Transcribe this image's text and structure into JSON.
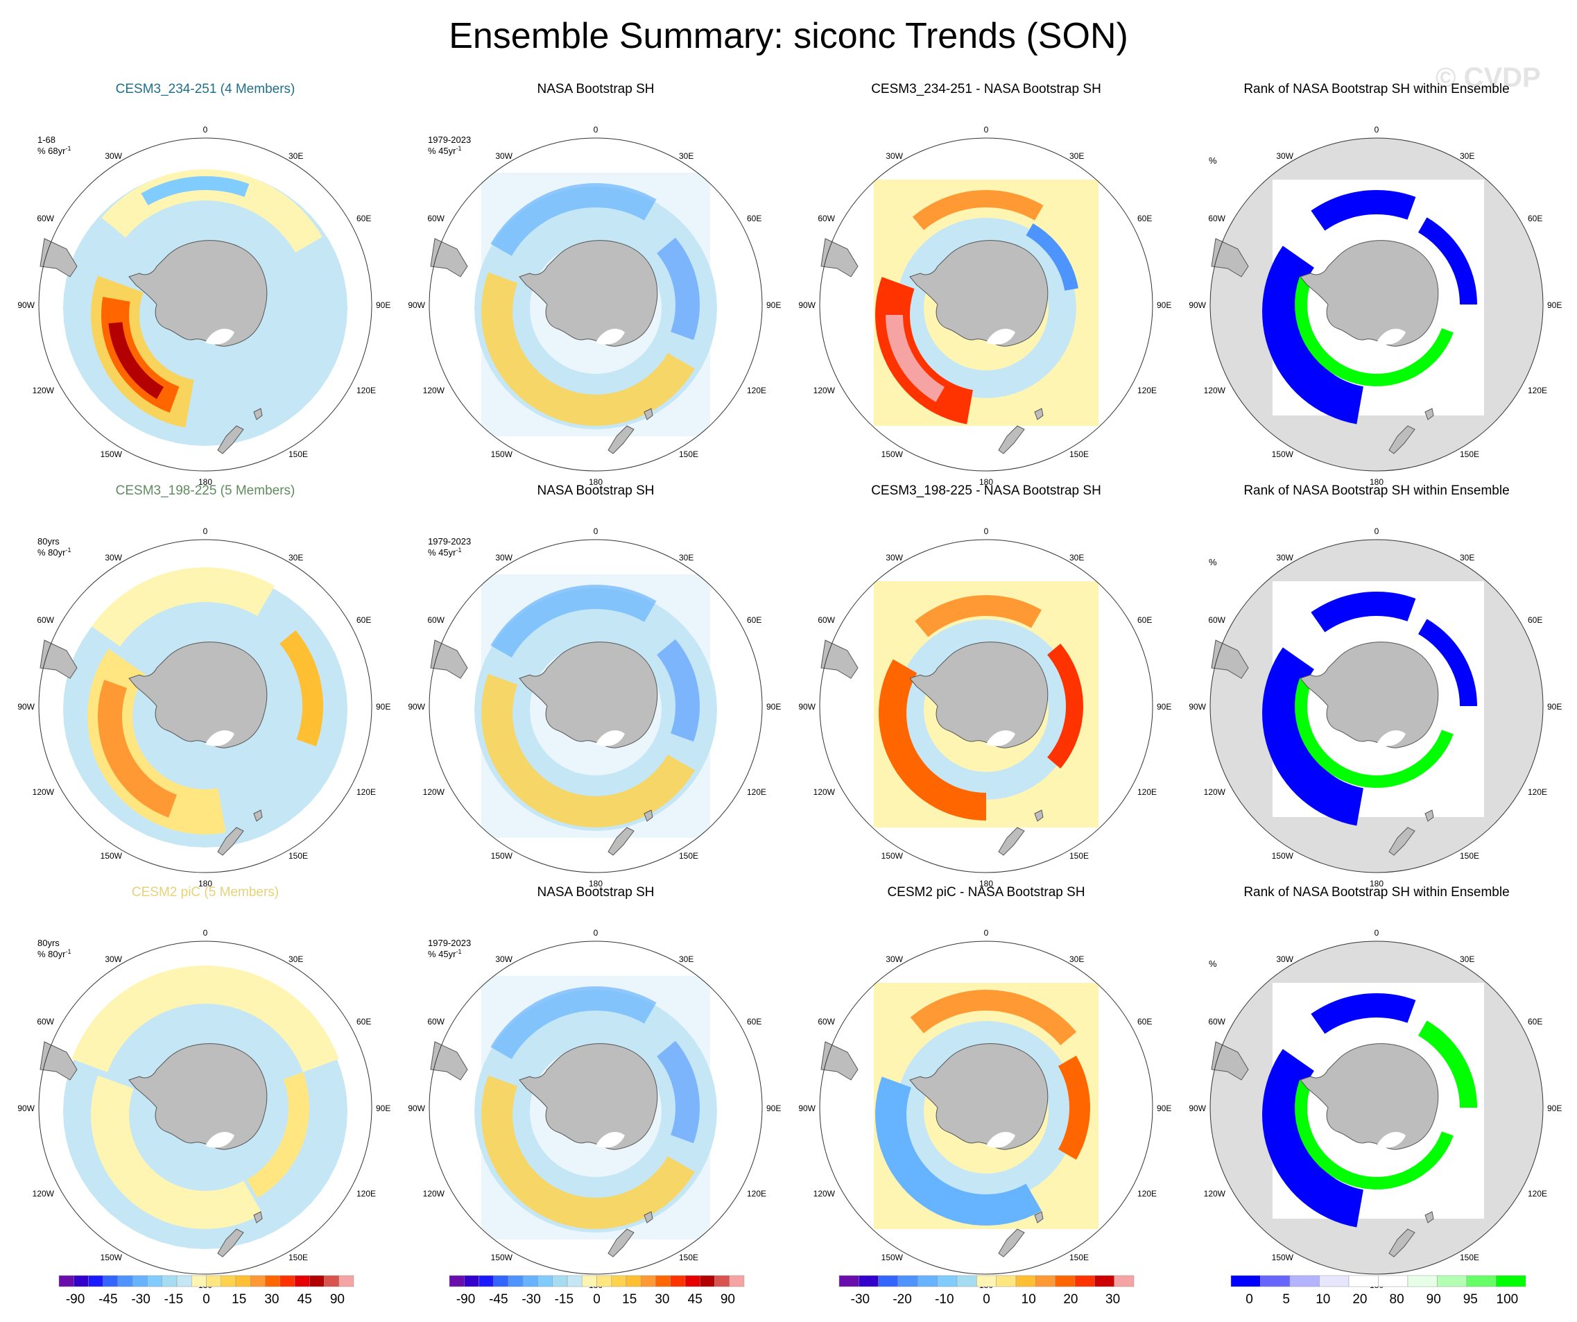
{
  "title": "Ensemble Summary: siconc Trends (SON)",
  "watermark": "© CVDP",
  "lon_labels": {
    "top": "0",
    "bottom": "180",
    "left": "90W",
    "right": "90E",
    "tl1": "30W",
    "tr1": "30E",
    "tl2": "60W",
    "tr2": "60E",
    "bl1": "120W",
    "br1": "120E",
    "bl2": "150W",
    "br2": "150E"
  },
  "colors": {
    "land": "#bdbdbd",
    "ocean_grey": "#dddddd",
    "model_title_1": "#1f6f8b",
    "model_title_2": "#5e8c5e",
    "model_title_3": "#e6d27a"
  },
  "rows": [
    {
      "model": {
        "title": "CESM3_234-251 (4 Members)",
        "period": "1-68",
        "units": "% 68yr",
        "units_sup": "-1"
      },
      "obs": {
        "title": "NASA Bootstrap SH",
        "period": "1979-2023",
        "units": "% 45yr",
        "units_sup": "-1"
      },
      "diff": {
        "title": "CESM3_234-251 - NASA Bootstrap SH"
      },
      "rank": {
        "title": "Rank of NASA Bootstrap SH within Ensemble",
        "units": "%"
      }
    },
    {
      "model": {
        "title": "CESM3_198-225 (5 Members)",
        "period": "80yrs",
        "units": "% 80yr",
        "units_sup": "-1"
      },
      "obs": {
        "title": "NASA Bootstrap SH",
        "period": "1979-2023",
        "units": "% 45yr",
        "units_sup": "-1"
      },
      "diff": {
        "title": "CESM3_198-225 - NASA Bootstrap SH"
      },
      "rank": {
        "title": "Rank of NASA Bootstrap SH within Ensemble",
        "units": "%"
      }
    },
    {
      "model": {
        "title": "CESM2 piC (5 Members)",
        "period": "80yrs",
        "units": "% 80yr",
        "units_sup": "-1"
      },
      "obs": {
        "title": "NASA Bootstrap SH",
        "period": "1979-2023",
        "units": "% 45yr",
        "units_sup": "-1"
      },
      "diff": {
        "title": "CESM2 piC - NASA Bootstrap SH"
      },
      "rank": {
        "title": "Rank of NASA Bootstrap SH within Ensemble",
        "units": "%"
      }
    }
  ],
  "colorbars": [
    {
      "name": "trend",
      "colors": [
        "#6a0dad",
        "#3300cc",
        "#1a1aff",
        "#3366ff",
        "#4d94ff",
        "#66b3ff",
        "#80ccff",
        "#a6dcf2",
        "#c4e6f5",
        "#fff5b3",
        "#ffe680",
        "#ffd24d",
        "#ffbf33",
        "#ff9933",
        "#ff6600",
        "#ff3300",
        "#e60000",
        "#b30000",
        "#d9534f",
        "#f5a3a3"
      ],
      "labels": [
        "-90",
        "-45",
        "-30",
        "-15",
        "0",
        "15",
        "30",
        "45",
        "90"
      ]
    },
    {
      "name": "trend",
      "colors": [
        "#6a0dad",
        "#3300cc",
        "#1a1aff",
        "#3366ff",
        "#4d94ff",
        "#66b3ff",
        "#80ccff",
        "#a6dcf2",
        "#c4e6f5",
        "#fff5b3",
        "#ffe680",
        "#ffd24d",
        "#ffbf33",
        "#ff9933",
        "#ff6600",
        "#ff3300",
        "#e60000",
        "#b30000",
        "#d9534f",
        "#f5a3a3"
      ],
      "labels": [
        "-90",
        "-45",
        "-30",
        "-15",
        "0",
        "15",
        "30",
        "45",
        "90"
      ]
    },
    {
      "name": "diff",
      "colors": [
        "#6a0dad",
        "#3300cc",
        "#3366ff",
        "#4d94ff",
        "#66b3ff",
        "#80ccff",
        "#a6dcf2",
        "#fff5b3",
        "#ffe680",
        "#ffbf33",
        "#ff9933",
        "#ff6600",
        "#ff3300",
        "#cc0000",
        "#f5a3a3"
      ],
      "labels": [
        "-30",
        "-20",
        "-10",
        "0",
        "10",
        "20",
        "30"
      ]
    },
    {
      "name": "rank",
      "colors": [
        "#0000ff",
        "#6666ff",
        "#b3b3ff",
        "#e6e6ff",
        "#ffffff",
        "#ffffff",
        "#e6ffe6",
        "#b3ffb3",
        "#66ff66",
        "#00ff00"
      ],
      "labels": [
        "0",
        "5",
        "10",
        "20",
        "80",
        "90",
        "95",
        "100"
      ]
    }
  ]
}
